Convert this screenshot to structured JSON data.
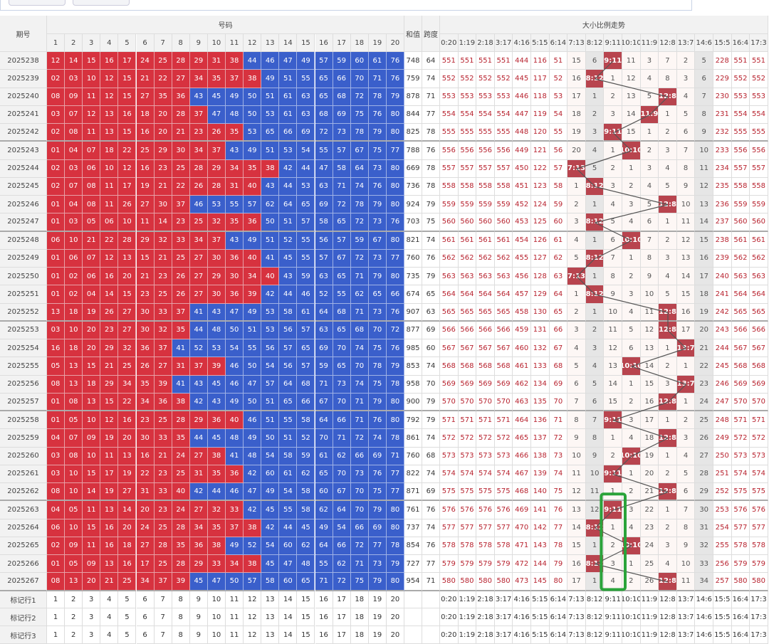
{
  "header": {
    "issue": "期号",
    "numbers_title": "号码",
    "sum": "和值",
    "span": "跨度",
    "trend_title": "大小比例走势",
    "numbers": [
      "1",
      "2",
      "3",
      "4",
      "5",
      "6",
      "7",
      "8",
      "9",
      "10",
      "11",
      "12",
      "13",
      "14",
      "15",
      "16",
      "17",
      "18",
      "19",
      "20"
    ],
    "ratios": [
      "0:20",
      "1:19",
      "2:18",
      "3:17",
      "4:16",
      "5:15",
      "6:14",
      "7:13",
      "8:12",
      "9:11",
      "10:10",
      "11:9",
      "12:8",
      "13:7",
      "14:6",
      "15:5",
      "16:4",
      "17:3"
    ]
  },
  "rows": [
    {
      "issue": "2025238",
      "numbers": [
        "12",
        "14",
        "15",
        "16",
        "17",
        "24",
        "25",
        "28",
        "29",
        "31",
        "38",
        "44",
        "46",
        "47",
        "49",
        "57",
        "59",
        "60",
        "61",
        "76"
      ],
      "sum": 748,
      "span": 64,
      "trend": [
        551,
        551,
        551,
        551,
        444,
        116,
        51,
        15,
        6,
        "9:11",
        11,
        3,
        7,
        2,
        5,
        228,
        551,
        551
      ]
    },
    {
      "issue": "2025239",
      "numbers": [
        "02",
        "03",
        "10",
        "12",
        "15",
        "21",
        "22",
        "27",
        "34",
        "35",
        "37",
        "38",
        "49",
        "51",
        "55",
        "65",
        "66",
        "70",
        "71",
        "76"
      ],
      "sum": 759,
      "span": 74,
      "trend": [
        552,
        552,
        552,
        552,
        445,
        117,
        52,
        16,
        "8:12",
        1,
        12,
        4,
        8,
        3,
        6,
        229,
        552,
        552
      ]
    },
    {
      "issue": "2025240",
      "numbers": [
        "08",
        "09",
        "11",
        "12",
        "15",
        "27",
        "35",
        "36",
        "43",
        "45",
        "49",
        "50",
        "51",
        "61",
        "63",
        "65",
        "68",
        "72",
        "78",
        "79"
      ],
      "sum": 878,
      "span": 71,
      "trend": [
        553,
        553,
        553,
        553,
        446,
        118,
        53,
        17,
        1,
        2,
        13,
        5,
        "12:8",
        4,
        7,
        230,
        553,
        553
      ]
    },
    {
      "issue": "2025241",
      "numbers": [
        "03",
        "07",
        "12",
        "13",
        "16",
        "18",
        "20",
        "28",
        "37",
        "47",
        "48",
        "50",
        "53",
        "61",
        "63",
        "68",
        "69",
        "75",
        "76",
        "80"
      ],
      "sum": 844,
      "span": 77,
      "trend": [
        554,
        554,
        554,
        554,
        447,
        119,
        54,
        18,
        2,
        3,
        14,
        "11:9",
        1,
        5,
        8,
        231,
        554,
        554
      ]
    },
    {
      "issue": "2025242",
      "numbers": [
        "02",
        "08",
        "11",
        "13",
        "15",
        "16",
        "20",
        "21",
        "23",
        "26",
        "35",
        "53",
        "65",
        "66",
        "69",
        "72",
        "73",
        "78",
        "79",
        "80"
      ],
      "sum": 825,
      "span": 78,
      "trend": [
        555,
        555,
        555,
        555,
        448,
        120,
        55,
        19,
        3,
        "9:11",
        15,
        1,
        2,
        6,
        9,
        232,
        555,
        555
      ]
    },
    {
      "issue": "2025243",
      "numbers": [
        "01",
        "04",
        "07",
        "18",
        "22",
        "25",
        "29",
        "30",
        "34",
        "37",
        "43",
        "49",
        "51",
        "53",
        "54",
        "55",
        "57",
        "67",
        "75",
        "77"
      ],
      "sum": 788,
      "span": 76,
      "trend": [
        556,
        556,
        556,
        556,
        449,
        121,
        56,
        20,
        4,
        1,
        "10:10",
        2,
        3,
        7,
        10,
        233,
        556,
        556
      ]
    },
    {
      "issue": "2025244",
      "numbers": [
        "02",
        "03",
        "06",
        "10",
        "12",
        "16",
        "23",
        "25",
        "28",
        "29",
        "34",
        "35",
        "38",
        "42",
        "44",
        "47",
        "58",
        "64",
        "73",
        "80"
      ],
      "sum": 669,
      "span": 78,
      "trend": [
        557,
        557,
        557,
        557,
        450,
        122,
        57,
        "7:13",
        5,
        2,
        1,
        3,
        4,
        8,
        11,
        234,
        557,
        557
      ]
    },
    {
      "issue": "2025245",
      "numbers": [
        "02",
        "07",
        "08",
        "11",
        "17",
        "19",
        "21",
        "22",
        "26",
        "28",
        "31",
        "40",
        "43",
        "44",
        "53",
        "63",
        "71",
        "74",
        "76",
        "80"
      ],
      "sum": 736,
      "span": 78,
      "trend": [
        558,
        558,
        558,
        558,
        451,
        123,
        58,
        1,
        "8:12",
        3,
        2,
        4,
        5,
        9,
        12,
        235,
        558,
        558
      ]
    },
    {
      "issue": "2025246",
      "numbers": [
        "01",
        "04",
        "08",
        "11",
        "26",
        "27",
        "30",
        "37",
        "46",
        "53",
        "55",
        "57",
        "62",
        "64",
        "65",
        "69",
        "72",
        "78",
        "79",
        "80"
      ],
      "sum": 924,
      "span": 79,
      "trend": [
        559,
        559,
        559,
        559,
        452,
        124,
        59,
        2,
        1,
        4,
        3,
        5,
        "12:8",
        10,
        13,
        236,
        559,
        559
      ]
    },
    {
      "issue": "2025247",
      "numbers": [
        "01",
        "03",
        "05",
        "06",
        "10",
        "11",
        "14",
        "23",
        "25",
        "32",
        "35",
        "36",
        "50",
        "51",
        "57",
        "58",
        "65",
        "72",
        "73",
        "76"
      ],
      "sum": 703,
      "span": 75,
      "trend": [
        560,
        560,
        560,
        560,
        453,
        125,
        60,
        3,
        "8:12",
        5,
        4,
        6,
        1,
        11,
        14,
        237,
        560,
        560
      ]
    },
    {
      "issue": "2025248",
      "numbers": [
        "06",
        "10",
        "21",
        "22",
        "28",
        "29",
        "32",
        "33",
        "34",
        "37",
        "43",
        "49",
        "51",
        "52",
        "55",
        "56",
        "57",
        "59",
        "67",
        "80"
      ],
      "sum": 821,
      "span": 74,
      "trend": [
        561,
        561,
        561,
        561,
        454,
        126,
        61,
        4,
        1,
        6,
        "10:10",
        7,
        2,
        12,
        15,
        238,
        561,
        561
      ]
    },
    {
      "issue": "2025249",
      "numbers": [
        "01",
        "06",
        "07",
        "12",
        "13",
        "15",
        "21",
        "25",
        "27",
        "30",
        "36",
        "40",
        "41",
        "45",
        "55",
        "57",
        "67",
        "72",
        "73",
        "77"
      ],
      "sum": 760,
      "span": 76,
      "trend": [
        562,
        562,
        562,
        562,
        455,
        127,
        62,
        5,
        "8:12",
        7,
        1,
        8,
        3,
        13,
        16,
        239,
        562,
        562
      ]
    },
    {
      "issue": "2025250",
      "numbers": [
        "01",
        "02",
        "06",
        "16",
        "20",
        "21",
        "23",
        "26",
        "27",
        "29",
        "30",
        "34",
        "40",
        "43",
        "59",
        "63",
        "65",
        "71",
        "79",
        "80"
      ],
      "sum": 735,
      "span": 79,
      "trend": [
        563,
        563,
        563,
        563,
        456,
        128,
        63,
        "7:13",
        1,
        8,
        2,
        9,
        4,
        14,
        17,
        240,
        563,
        563
      ]
    },
    {
      "issue": "2025251",
      "numbers": [
        "01",
        "02",
        "04",
        "14",
        "15",
        "23",
        "25",
        "26",
        "27",
        "30",
        "36",
        "39",
        "42",
        "44",
        "46",
        "52",
        "55",
        "62",
        "65",
        "66"
      ],
      "sum": 674,
      "span": 65,
      "trend": [
        564,
        564,
        564,
        564,
        457,
        129,
        64,
        1,
        "8:12",
        9,
        3,
        10,
        5,
        15,
        18,
        241,
        564,
        564
      ]
    },
    {
      "issue": "2025252",
      "numbers": [
        "13",
        "18",
        "19",
        "26",
        "27",
        "30",
        "33",
        "37",
        "41",
        "43",
        "47",
        "49",
        "53",
        "58",
        "61",
        "64",
        "68",
        "71",
        "73",
        "76"
      ],
      "sum": 907,
      "span": 63,
      "trend": [
        565,
        565,
        565,
        565,
        458,
        130,
        65,
        2,
        1,
        10,
        4,
        11,
        "12:8",
        16,
        19,
        242,
        565,
        565
      ]
    },
    {
      "issue": "2025253",
      "numbers": [
        "03",
        "10",
        "20",
        "23",
        "27",
        "30",
        "32",
        "35",
        "44",
        "48",
        "50",
        "51",
        "53",
        "56",
        "57",
        "63",
        "65",
        "68",
        "70",
        "72"
      ],
      "sum": 877,
      "span": 69,
      "trend": [
        566,
        566,
        566,
        566,
        459,
        131,
        66,
        3,
        2,
        11,
        5,
        12,
        "12:8",
        17,
        20,
        243,
        566,
        566
      ]
    },
    {
      "issue": "2025254",
      "numbers": [
        "16",
        "18",
        "20",
        "29",
        "32",
        "36",
        "37",
        "41",
        "52",
        "53",
        "54",
        "55",
        "56",
        "57",
        "65",
        "69",
        "70",
        "74",
        "75",
        "76"
      ],
      "sum": 985,
      "span": 60,
      "trend": [
        567,
        567,
        567,
        567,
        460,
        132,
        67,
        4,
        3,
        12,
        6,
        13,
        1,
        "13:7",
        21,
        244,
        567,
        567
      ]
    },
    {
      "issue": "2025255",
      "numbers": [
        "05",
        "13",
        "15",
        "21",
        "25",
        "26",
        "27",
        "31",
        "37",
        "39",
        "46",
        "50",
        "54",
        "56",
        "57",
        "59",
        "65",
        "70",
        "78",
        "79"
      ],
      "sum": 853,
      "span": 74,
      "trend": [
        568,
        568,
        568,
        568,
        461,
        133,
        68,
        5,
        4,
        13,
        "10:10",
        14,
        2,
        1,
        22,
        245,
        568,
        568
      ]
    },
    {
      "issue": "2025256",
      "numbers": [
        "08",
        "13",
        "18",
        "29",
        "34",
        "35",
        "39",
        "41",
        "43",
        "45",
        "46",
        "47",
        "57",
        "64",
        "68",
        "71",
        "73",
        "74",
        "75",
        "78"
      ],
      "sum": 958,
      "span": 70,
      "trend": [
        569,
        569,
        569,
        569,
        462,
        134,
        69,
        6,
        5,
        14,
        1,
        15,
        3,
        "13:7",
        23,
        246,
        569,
        569
      ]
    },
    {
      "issue": "2025257",
      "numbers": [
        "01",
        "08",
        "13",
        "15",
        "22",
        "34",
        "36",
        "38",
        "42",
        "43",
        "49",
        "50",
        "51",
        "65",
        "66",
        "67",
        "70",
        "71",
        "79",
        "80"
      ],
      "sum": 900,
      "span": 79,
      "trend": [
        570,
        570,
        570,
        570,
        463,
        135,
        70,
        7,
        6,
        15,
        2,
        16,
        "12:8",
        1,
        24,
        247,
        570,
        570
      ]
    },
    {
      "issue": "2025258",
      "numbers": [
        "01",
        "05",
        "10",
        "12",
        "16",
        "23",
        "25",
        "28",
        "29",
        "36",
        "40",
        "46",
        "51",
        "55",
        "58",
        "64",
        "66",
        "71",
        "76",
        "80"
      ],
      "sum": 792,
      "span": 79,
      "trend": [
        571,
        571,
        571,
        571,
        464,
        136,
        71,
        8,
        7,
        "9:11",
        3,
        17,
        1,
        2,
        25,
        248,
        571,
        571
      ]
    },
    {
      "issue": "2025259",
      "numbers": [
        "04",
        "07",
        "09",
        "19",
        "20",
        "30",
        "33",
        "35",
        "44",
        "45",
        "48",
        "49",
        "50",
        "51",
        "52",
        "70",
        "71",
        "72",
        "74",
        "78"
      ],
      "sum": 861,
      "span": 74,
      "trend": [
        572,
        572,
        572,
        572,
        465,
        137,
        72,
        9,
        8,
        1,
        4,
        18,
        "12:8",
        3,
        26,
        249,
        572,
        572
      ]
    },
    {
      "issue": "2025260",
      "numbers": [
        "03",
        "08",
        "10",
        "11",
        "13",
        "16",
        "21",
        "24",
        "27",
        "38",
        "41",
        "48",
        "54",
        "58",
        "59",
        "61",
        "62",
        "66",
        "69",
        "71"
      ],
      "sum": 760,
      "span": 68,
      "trend": [
        573,
        573,
        573,
        573,
        466,
        138,
        73,
        10,
        9,
        2,
        "10:10",
        19,
        1,
        4,
        27,
        250,
        573,
        573
      ]
    },
    {
      "issue": "2025261",
      "numbers": [
        "03",
        "10",
        "15",
        "17",
        "19",
        "22",
        "23",
        "25",
        "31",
        "35",
        "36",
        "42",
        "60",
        "61",
        "62",
        "65",
        "70",
        "73",
        "76",
        "77"
      ],
      "sum": 822,
      "span": 74,
      "trend": [
        574,
        574,
        574,
        574,
        467,
        139,
        74,
        11,
        10,
        "9:11",
        1,
        20,
        2,
        5,
        28,
        251,
        574,
        574
      ]
    },
    {
      "issue": "2025262",
      "numbers": [
        "08",
        "10",
        "14",
        "19",
        "27",
        "31",
        "33",
        "40",
        "42",
        "44",
        "46",
        "47",
        "49",
        "54",
        "58",
        "60",
        "67",
        "70",
        "75",
        "77"
      ],
      "sum": 871,
      "span": 69,
      "trend": [
        575,
        575,
        575,
        575,
        468,
        140,
        75,
        12,
        11,
        1,
        2,
        21,
        "12:8",
        6,
        29,
        252,
        575,
        575
      ]
    },
    {
      "issue": "2025263",
      "numbers": [
        "04",
        "05",
        "11",
        "13",
        "14",
        "20",
        "23",
        "24",
        "27",
        "32",
        "33",
        "42",
        "45",
        "55",
        "58",
        "62",
        "64",
        "70",
        "79",
        "80"
      ],
      "sum": 761,
      "span": 76,
      "trend": [
        576,
        576,
        576,
        576,
        469,
        141,
        76,
        13,
        12,
        "9:11",
        3,
        22,
        1,
        7,
        30,
        253,
        576,
        576
      ]
    },
    {
      "issue": "2025264",
      "numbers": [
        "06",
        "10",
        "15",
        "16",
        "20",
        "24",
        "25",
        "28",
        "34",
        "35",
        "37",
        "38",
        "42",
        "44",
        "45",
        "49",
        "54",
        "66",
        "69",
        "80"
      ],
      "sum": 737,
      "span": 74,
      "trend": [
        577,
        577,
        577,
        577,
        470,
        142,
        77,
        14,
        "8:12",
        1,
        4,
        23,
        2,
        8,
        31,
        254,
        577,
        577
      ]
    },
    {
      "issue": "2025265",
      "numbers": [
        "02",
        "09",
        "11",
        "16",
        "18",
        "27",
        "28",
        "35",
        "36",
        "38",
        "49",
        "52",
        "54",
        "60",
        "62",
        "64",
        "66",
        "72",
        "77",
        "78"
      ],
      "sum": 854,
      "span": 76,
      "trend": [
        578,
        578,
        578,
        578,
        471,
        143,
        78,
        15,
        1,
        2,
        "10:10",
        24,
        3,
        9,
        32,
        255,
        578,
        578
      ]
    },
    {
      "issue": "2025266",
      "numbers": [
        "01",
        "05",
        "09",
        "13",
        "16",
        "17",
        "25",
        "28",
        "29",
        "33",
        "34",
        "38",
        "45",
        "47",
        "48",
        "55",
        "62",
        "71",
        "73",
        "79"
      ],
      "sum": 727,
      "span": 77,
      "trend": [
        579,
        579,
        579,
        579,
        472,
        144,
        79,
        16,
        "8:12",
        3,
        1,
        25,
        4,
        10,
        33,
        256,
        579,
        579
      ]
    },
    {
      "issue": "2025267",
      "numbers": [
        "08",
        "13",
        "20",
        "21",
        "25",
        "34",
        "37",
        "39",
        "45",
        "47",
        "50",
        "57",
        "58",
        "60",
        "65",
        "71",
        "72",
        "75",
        "79",
        "80"
      ],
      "sum": 954,
      "span": 71,
      "trend": [
        580,
        580,
        580,
        580,
        473,
        145,
        80,
        17,
        1,
        4,
        2,
        26,
        "12:8",
        11,
        34,
        257,
        580,
        580
      ]
    }
  ],
  "footer": [
    "标记行1",
    "标记行2",
    "标记行3"
  ]
}
